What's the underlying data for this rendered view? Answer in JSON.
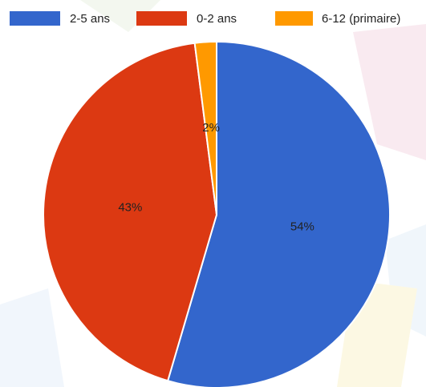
{
  "chart_data": {
    "type": "pie",
    "categories": [
      "2-5 ans",
      "0-2 ans",
      "6-12 (primaire)"
    ],
    "values": [
      54,
      43,
      2
    ],
    "value_labels": [
      "54%",
      "43%",
      "2%"
    ],
    "colors": [
      "#3366cc",
      "#dc3912",
      "#ff9900"
    ],
    "legend": "top"
  }
}
